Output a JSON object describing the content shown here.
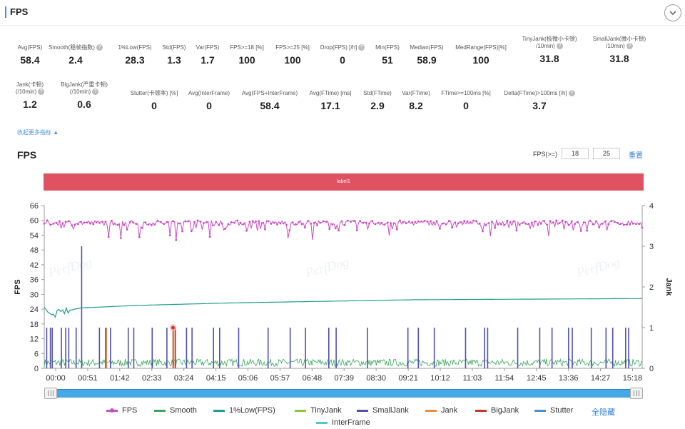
{
  "header": {
    "title": "FPS"
  },
  "stats": [
    {
      "label": "Avg(FPS)",
      "value": "58.4",
      "help": false
    },
    {
      "label": "Smooth(稳帧指数)",
      "value": "2.4",
      "help": true
    },
    {
      "label": "1%Low(FPS)",
      "value": "28.3",
      "help": false
    },
    {
      "label": "Std(FPS)",
      "value": "1.3",
      "help": false
    },
    {
      "label": "Var(FPS)",
      "value": "1.7",
      "help": false
    },
    {
      "label": "FPS>=18 [%]",
      "value": "100",
      "help": false
    },
    {
      "label": "FPS>=25 [%]",
      "value": "100",
      "help": false
    },
    {
      "label": "Drop(FPS) [/h]",
      "value": "0",
      "help": true
    },
    {
      "label": "Min(FPS)",
      "value": "51",
      "help": false
    },
    {
      "label": "Median(FPS)",
      "value": "58.9",
      "help": false
    },
    {
      "label": "MedRange(FPS)[%]",
      "value": "100",
      "help": false
    },
    {
      "label": "TinyJank(极微小卡顿)",
      "label2": "/10min)",
      "value": "31.8",
      "help": true
    },
    {
      "label": "SmallJank(微小卡顿)",
      "label2": "/10min)",
      "value": "31.8",
      "help": true
    },
    {
      "label": "Jank(卡顿)",
      "label2": "(/10min)",
      "value": "1.2",
      "help": true
    },
    {
      "label": "BigJank(严重卡顿)",
      "label2": "(/10min)",
      "value": "0.6",
      "help": true
    },
    {
      "label": "Stutter(卡顿率) [%]",
      "value": "0",
      "help": false
    },
    {
      "label": "Avg(InterFrame)",
      "value": "0",
      "help": false
    },
    {
      "label": "Avg(FPS+InterFrame)",
      "value": "58.4",
      "help": false
    },
    {
      "label": "Avg(FTime) [ms]",
      "value": "17.1",
      "help": false
    },
    {
      "label": "Std(FTime)",
      "value": "2.9",
      "help": false
    },
    {
      "label": "Var(FTime)",
      "value": "8.2",
      "help": false
    },
    {
      "label": "FTime>=100ms [%]",
      "value": "0",
      "help": false
    },
    {
      "label": "Delta(FTime)>100ms [/h]",
      "value": "3.7",
      "help": true
    }
  ],
  "collapse_link": "收起更多指标 ▲",
  "chart_section": {
    "title": "FPS",
    "threshold_label": "FPS(>=)",
    "threshold_low": "18",
    "threshold_high": "25",
    "reset_label": "重置",
    "band_label": "label1",
    "hide_all_label": "全隐藏"
  },
  "chart_data": {
    "type": "line",
    "ylabel": "FPS",
    "y2label": "Jank",
    "ylim": [
      0,
      66
    ],
    "y_ticks": [
      0,
      6,
      12,
      18,
      24,
      30,
      36,
      42,
      48,
      54,
      60,
      66
    ],
    "y2lim": [
      0,
      4
    ],
    "y2_ticks": [
      0,
      1,
      2,
      3,
      4
    ],
    "x_ticks": [
      "00:00",
      "00:51",
      "01:42",
      "02:33",
      "03:24",
      "04:15",
      "05:06",
      "05:57",
      "06:48",
      "07:39",
      "08:30",
      "09:21",
      "10:12",
      "11:03",
      "11:54",
      "12:45",
      "13:36",
      "14:27",
      "15:18"
    ],
    "duration_seconds": 975,
    "series": [
      {
        "name": "FPS",
        "color": "#c94fc0",
        "axis": "left",
        "baseline": 58.5,
        "range": [
          51,
          60
        ]
      },
      {
        "name": "Smooth",
        "color": "#3aa65c",
        "axis": "right",
        "baseline": 0.1
      },
      {
        "name": "1%Low(FPS)",
        "color": "#1f9e8e",
        "axis": "left",
        "points": [
          [
            0,
            26
          ],
          [
            10,
            21
          ],
          [
            30,
            23
          ],
          [
            60,
            24.5
          ],
          [
            150,
            25.5
          ],
          [
            300,
            26.5
          ],
          [
            600,
            27.8
          ],
          [
            975,
            28.3
          ]
        ]
      },
      {
        "name": "TinyJank",
        "color": "#8cc63f",
        "axis": "right"
      },
      {
        "name": "SmallJank",
        "color": "#5250b0",
        "axis": "right",
        "spike_value": 1,
        "max_spike": 3
      },
      {
        "name": "Jank",
        "color": "#f08a3c",
        "axis": "right"
      },
      {
        "name": "BigJank",
        "color": "#c0392b",
        "axis": "right",
        "event_time": 210,
        "event_value": 1
      },
      {
        "name": "Stutter",
        "color": "#4a8fd8",
        "axis": "right"
      },
      {
        "name": "InterFrame",
        "color": "#4ec6d8",
        "axis": "right"
      }
    ],
    "smalljank_times": [
      4,
      10,
      13,
      28,
      35,
      40,
      52,
      61,
      90,
      100,
      108,
      137,
      146,
      176,
      200,
      214,
      232,
      241,
      276,
      286,
      317,
      365,
      401,
      426,
      464,
      476,
      527,
      593,
      610,
      636,
      687,
      718,
      723,
      772,
      808,
      828,
      855,
      861,
      892,
      916,
      927,
      948,
      953
    ]
  },
  "watermark": "PerfDog"
}
